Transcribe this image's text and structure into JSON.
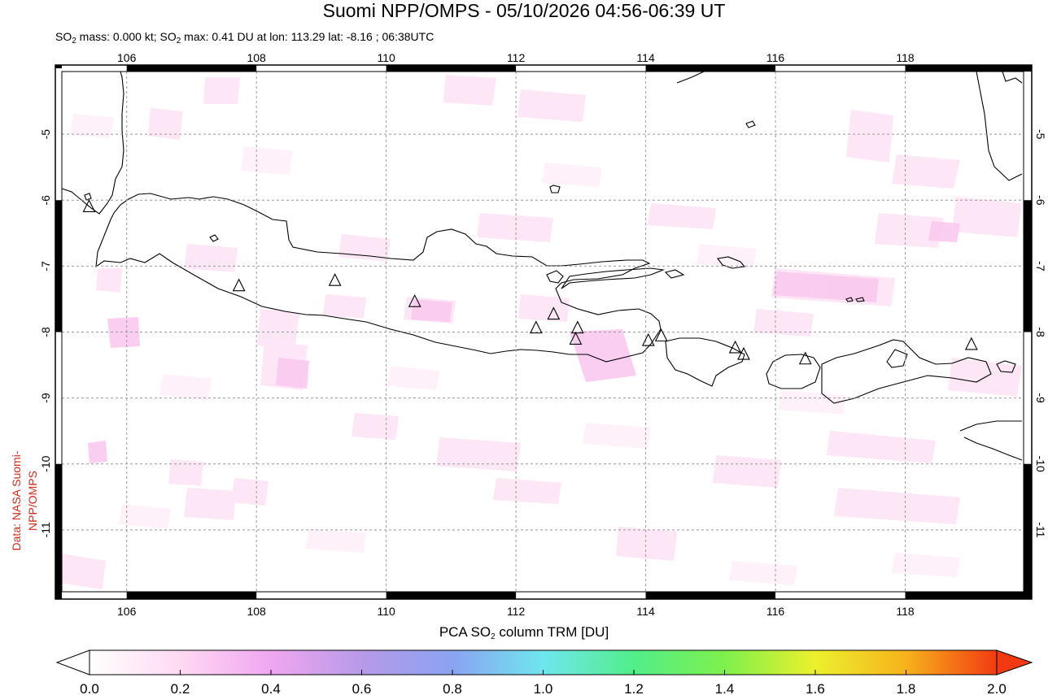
{
  "title": "Suomi NPP/OMPS - 05/10/2026 04:56-06:39 UT",
  "subtitle": {
    "prefix": "SO",
    "sub": "2",
    "mid": " mass: 0.000 kt; SO",
    "sub2": "2",
    "rest": " max: 0.41 DU at lon: 113.29 lat: -8.16 ; 06:38UTC"
  },
  "side_credit": "Data: NASA Suomi-NPP/OMPS",
  "map": {
    "lon_ticks": [
      "106",
      "108",
      "110",
      "112",
      "114",
      "116",
      "118"
    ],
    "lat_ticks": [
      "-5",
      "-6",
      "-7",
      "-8",
      "-9",
      "-10",
      "-11"
    ],
    "lon_values": [
      106,
      108,
      110,
      112,
      114,
      116,
      118
    ],
    "lat_values": [
      -5,
      -6,
      -7,
      -8,
      -9,
      -10,
      -11
    ],
    "lon_range": [
      104.9,
      119.95
    ],
    "lat_range": [
      -12.05,
      -3.95
    ],
    "volcano_icon": "triangle-icon",
    "volcanoes": [
      [
        105.42,
        -6.1
      ],
      [
        107.73,
        -7.3
      ],
      [
        109.21,
        -7.22
      ],
      [
        110.44,
        -7.54
      ],
      [
        112.31,
        -7.94
      ],
      [
        112.58,
        -7.73
      ],
      [
        112.95,
        -7.94
      ],
      [
        112.92,
        -8.11
      ],
      [
        114.04,
        -8.13
      ],
      [
        114.24,
        -8.06
      ],
      [
        115.38,
        -8.24
      ],
      [
        115.51,
        -8.34
      ],
      [
        116.46,
        -8.41
      ],
      [
        119.02,
        -8.19
      ]
    ]
  },
  "colorbar": {
    "label_prefix": "PCA SO",
    "label_sub": "2",
    "label_suffix": " column TRM [DU]",
    "ticks": [
      "0.0",
      "0.2",
      "0.4",
      "0.6",
      "0.8",
      "1.0",
      "1.2",
      "1.4",
      "1.6",
      "1.8",
      "2.0"
    ],
    "stops": [
      "#ffffff",
      "#ffd9f3",
      "#f0a6f0",
      "#b79ae8",
      "#8aa3f2",
      "#6fe6ee",
      "#52ee8a",
      "#7ef04c",
      "#ecf02c",
      "#f7b21c",
      "#f23a12"
    ]
  }
}
